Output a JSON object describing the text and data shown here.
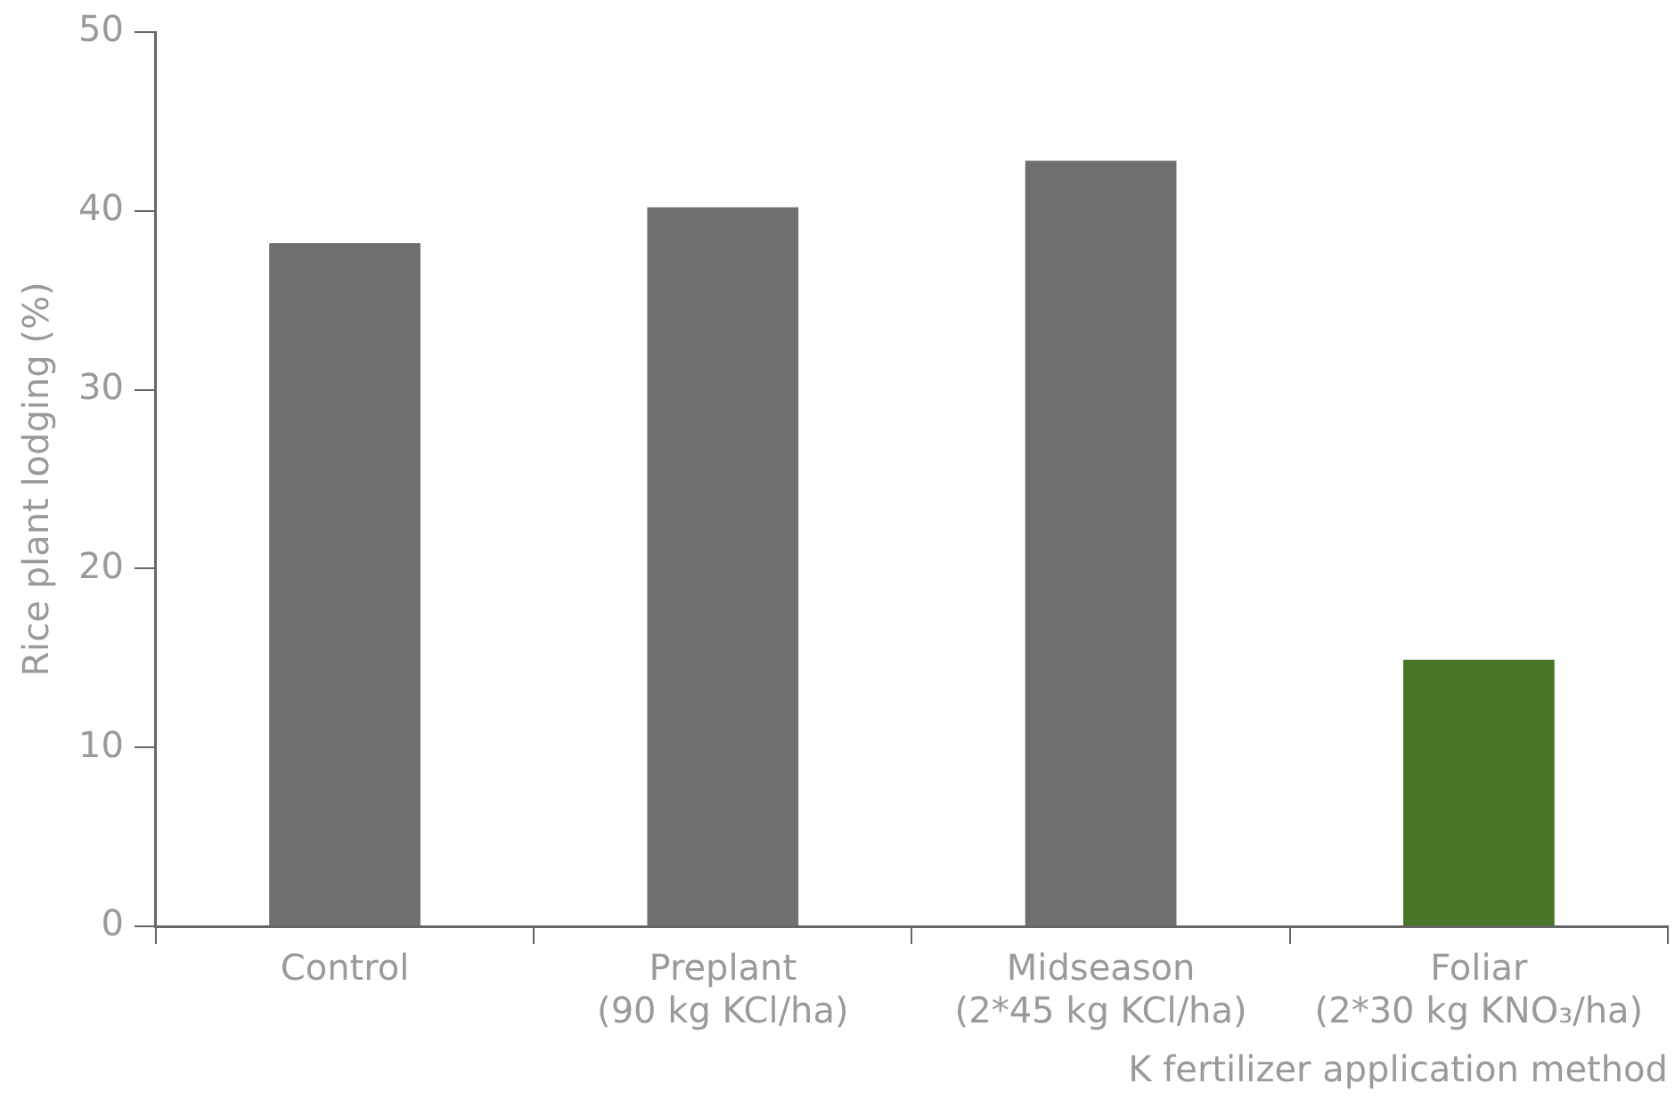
{
  "chart_data": {
    "type": "bar",
    "categories": [
      "Control",
      "Preplant\n(90 kg KCl/ha)",
      "Midseason\n(2*45 kg KCl/ha)",
      "Foliar\n(2*30 kg KNO₃/ha)"
    ],
    "values": [
      38.2,
      40.2,
      42.8,
      14.9
    ],
    "colors": [
      "#6e6f6e",
      "#6e6f6e",
      "#6e6f6e",
      "#487628"
    ],
    "xlabel": "K fertilizer application method",
    "ylabel": "Rice plant lodging (%)",
    "ylim": [
      0,
      50
    ],
    "yticks": [
      0,
      10,
      20,
      30,
      40,
      50
    ],
    "grid": false,
    "legend": false
  }
}
